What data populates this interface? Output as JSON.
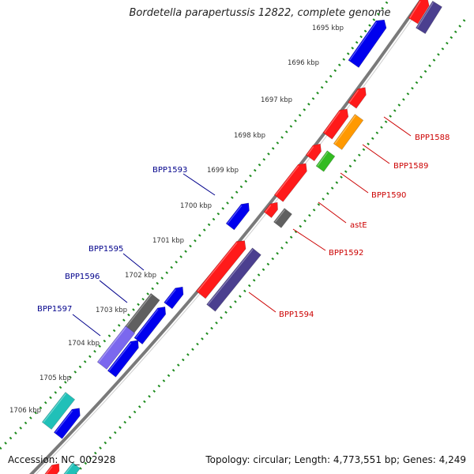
{
  "title": "Bordetella parapertussis 12822, complete genome",
  "footer": {
    "accession_text": "Accession: NC_002928",
    "summary_text": "Topology: circular; Length: 4,773,551 bp; Genes: 4,249"
  },
  "colors": {
    "backbone": "#7a7a7a",
    "ruler_dots": "#1e8c1e",
    "label_red": "#cc0000",
    "label_blue": "#00008b",
    "red": "#ff1a1a",
    "blue": "#0000ee",
    "gray": "#606060",
    "slate": "#4b3f8f",
    "orange": "#ff9900",
    "green": "#33bb22",
    "lavender": "#7b68ee",
    "teal": "#20c0b8"
  },
  "scale_ticks": [
    {
      "label": "1695 kbp"
    },
    {
      "label": "1696 kbp"
    },
    {
      "label": "1697 kbp"
    },
    {
      "label": "1698 kbp"
    },
    {
      "label": "1699 kbp"
    },
    {
      "label": "1700 kbp"
    },
    {
      "label": "1701 kbp"
    },
    {
      "label": "1702 kbp"
    },
    {
      "label": "1703 kbp"
    },
    {
      "label": "1704 kbp"
    },
    {
      "label": "1705 kbp"
    },
    {
      "label": "1706 kbp"
    }
  ],
  "gene_labels": [
    {
      "name": "BPP1588",
      "color": "red"
    },
    {
      "name": "BPP1589",
      "color": "red"
    },
    {
      "name": "BPP1590",
      "color": "red"
    },
    {
      "name": "astE",
      "color": "red"
    },
    {
      "name": "BPP1592",
      "color": "red"
    },
    {
      "name": "BPP1594",
      "color": "red"
    },
    {
      "name": "BPP1593",
      "color": "blue"
    },
    {
      "name": "BPP1595",
      "color": "blue"
    },
    {
      "name": "BPP1596",
      "color": "blue"
    },
    {
      "name": "BPP1597",
      "color": "blue"
    }
  ]
}
